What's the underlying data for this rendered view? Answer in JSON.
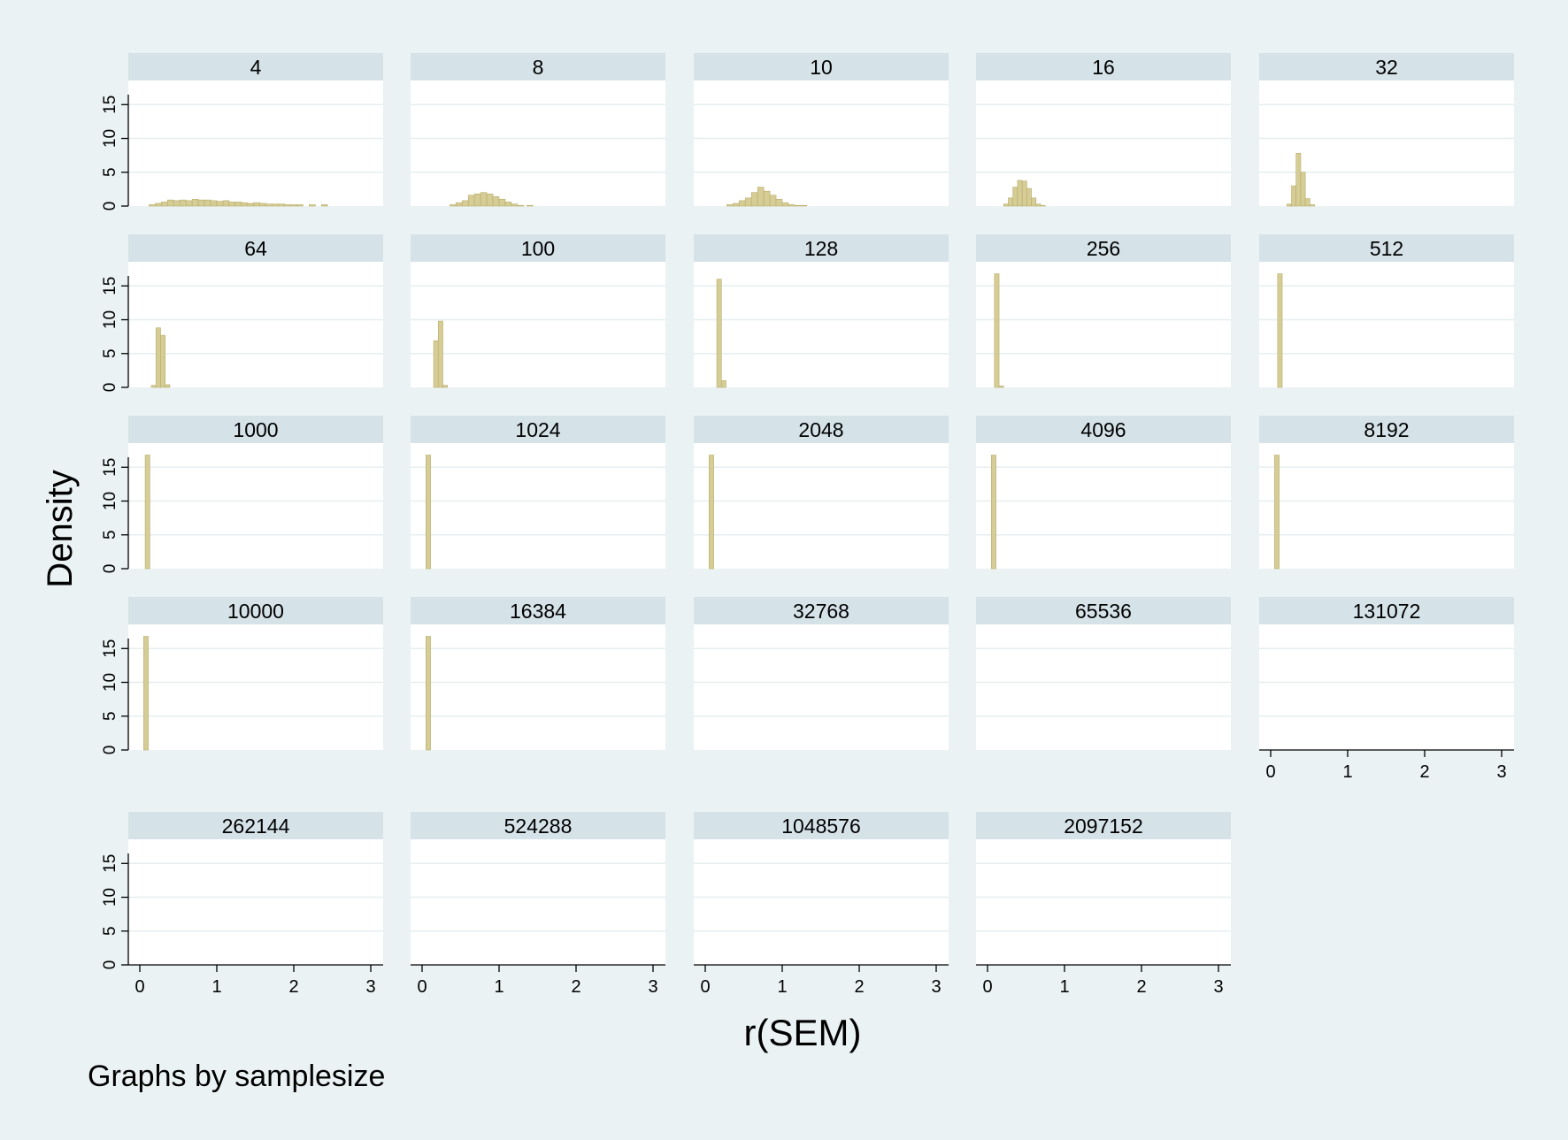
{
  "chart_data": {
    "type": "bar",
    "ylabel": "Density",
    "xlabel": "r(SEM)",
    "note": "Graphs by samplesize",
    "xlim": [
      0,
      3
    ],
    "ylim": [
      0,
      17
    ],
    "x_ticks": [
      0,
      1,
      2,
      3
    ],
    "y_ticks": [
      0,
      5,
      10,
      15
    ],
    "grid": true,
    "bar_color": "#d5cc96",
    "bar_edge_color": "#b9ad68",
    "panel_header_color": "#d5e2e8",
    "background_color": "#eaf2f3",
    "panels": [
      {
        "label": "4",
        "bin_width": 0.08,
        "bins": [
          [
            0.12,
            0.2
          ],
          [
            0.2,
            0.4
          ],
          [
            0.28,
            0.6
          ],
          [
            0.36,
            0.9
          ],
          [
            0.44,
            0.8
          ],
          [
            0.52,
            0.9
          ],
          [
            0.6,
            0.8
          ],
          [
            0.68,
            1.0
          ],
          [
            0.76,
            0.9
          ],
          [
            0.84,
            0.9
          ],
          [
            0.92,
            0.8
          ],
          [
            1.0,
            0.7
          ],
          [
            1.08,
            0.8
          ],
          [
            1.16,
            0.6
          ],
          [
            1.24,
            0.6
          ],
          [
            1.32,
            0.5
          ],
          [
            1.4,
            0.4
          ],
          [
            1.48,
            0.5
          ],
          [
            1.56,
            0.4
          ],
          [
            1.64,
            0.3
          ],
          [
            1.72,
            0.3
          ],
          [
            1.8,
            0.3
          ],
          [
            1.88,
            0.2
          ],
          [
            1.96,
            0.2
          ],
          [
            2.04,
            0.2
          ],
          [
            2.2,
            0.2
          ],
          [
            2.36,
            0.2
          ]
        ]
      },
      {
        "label": "8",
        "bin_width": 0.08,
        "bins": [
          [
            0.36,
            0.2
          ],
          [
            0.44,
            0.5
          ],
          [
            0.52,
            0.8
          ],
          [
            0.6,
            1.6
          ],
          [
            0.68,
            1.8
          ],
          [
            0.76,
            2.0
          ],
          [
            0.84,
            1.8
          ],
          [
            0.92,
            1.4
          ],
          [
            1.0,
            1.0
          ],
          [
            1.08,
            0.6
          ],
          [
            1.16,
            0.3
          ],
          [
            1.24,
            0.1
          ],
          [
            1.36,
            0.1
          ]
        ]
      },
      {
        "label": "10",
        "bin_width": 0.08,
        "bins": [
          [
            0.28,
            0.2
          ],
          [
            0.36,
            0.4
          ],
          [
            0.44,
            0.8
          ],
          [
            0.52,
            1.2
          ],
          [
            0.6,
            2.0
          ],
          [
            0.68,
            2.8
          ],
          [
            0.76,
            2.2
          ],
          [
            0.84,
            1.6
          ],
          [
            0.92,
            1.0
          ],
          [
            1.0,
            0.5
          ],
          [
            1.08,
            0.2
          ],
          [
            1.16,
            0.1
          ],
          [
            1.24,
            0.1
          ]
        ]
      },
      {
        "label": "16",
        "bin_width": 0.06,
        "bins": [
          [
            0.21,
            0.3
          ],
          [
            0.27,
            1.2
          ],
          [
            0.33,
            2.8
          ],
          [
            0.39,
            3.8
          ],
          [
            0.45,
            3.7
          ],
          [
            0.51,
            2.6
          ],
          [
            0.57,
            1.2
          ],
          [
            0.63,
            0.3
          ],
          [
            0.69,
            0.1
          ]
        ]
      },
      {
        "label": "32",
        "bin_width": 0.06,
        "bins": [
          [
            0.21,
            0.3
          ],
          [
            0.27,
            3.0
          ],
          [
            0.33,
            7.8
          ],
          [
            0.39,
            5.0
          ],
          [
            0.45,
            1.1
          ],
          [
            0.51,
            0.2
          ]
        ]
      },
      {
        "label": "64",
        "bin_width": 0.06,
        "bins": [
          [
            0.15,
            0.3
          ],
          [
            0.21,
            8.8
          ],
          [
            0.27,
            7.7
          ],
          [
            0.33,
            0.4
          ]
        ]
      },
      {
        "label": "100",
        "bin_width": 0.06,
        "bins": [
          [
            0.15,
            6.9
          ],
          [
            0.21,
            9.8
          ],
          [
            0.27,
            0.3
          ]
        ]
      },
      {
        "label": "128",
        "bin_width": 0.06,
        "bins": [
          [
            0.15,
            16.0
          ],
          [
            0.21,
            1.0
          ]
        ]
      },
      {
        "label": "256",
        "bin_width": 0.06,
        "bins": [
          [
            0.09,
            16.8
          ],
          [
            0.15,
            0.2
          ]
        ]
      },
      {
        "label": "512",
        "bin_width": 0.06,
        "bins": [
          [
            0.09,
            16.8
          ]
        ]
      },
      {
        "label": "1000",
        "bin_width": 0.06,
        "bins": [
          [
            0.07,
            16.8
          ]
        ]
      },
      {
        "label": "1024",
        "bin_width": 0.06,
        "bins": [
          [
            0.05,
            16.8
          ]
        ]
      },
      {
        "label": "2048",
        "bin_width": 0.06,
        "bins": [
          [
            0.05,
            16.8
          ]
        ]
      },
      {
        "label": "4096",
        "bin_width": 0.06,
        "bins": [
          [
            0.05,
            16.8
          ]
        ]
      },
      {
        "label": "8192",
        "bin_width": 0.06,
        "bins": [
          [
            0.05,
            16.8
          ]
        ]
      },
      {
        "label": "10000",
        "bin_width": 0.06,
        "bins": [
          [
            0.05,
            16.8
          ]
        ]
      },
      {
        "label": "16384",
        "bin_width": 0.06,
        "bins": [
          [
            0.05,
            16.8
          ]
        ]
      },
      {
        "label": "32768",
        "bin_width": 0.06,
        "bins": []
      },
      {
        "label": "65536",
        "bin_width": 0.06,
        "bins": []
      },
      {
        "label": "131072",
        "bin_width": 0.06,
        "bins": []
      },
      {
        "label": "262144",
        "bin_width": 0.06,
        "bins": []
      },
      {
        "label": "524288",
        "bin_width": 0.06,
        "bins": []
      },
      {
        "label": "1048576",
        "bin_width": 0.06,
        "bins": []
      },
      {
        "label": "2097152",
        "bin_width": 0.06,
        "bins": []
      }
    ]
  }
}
